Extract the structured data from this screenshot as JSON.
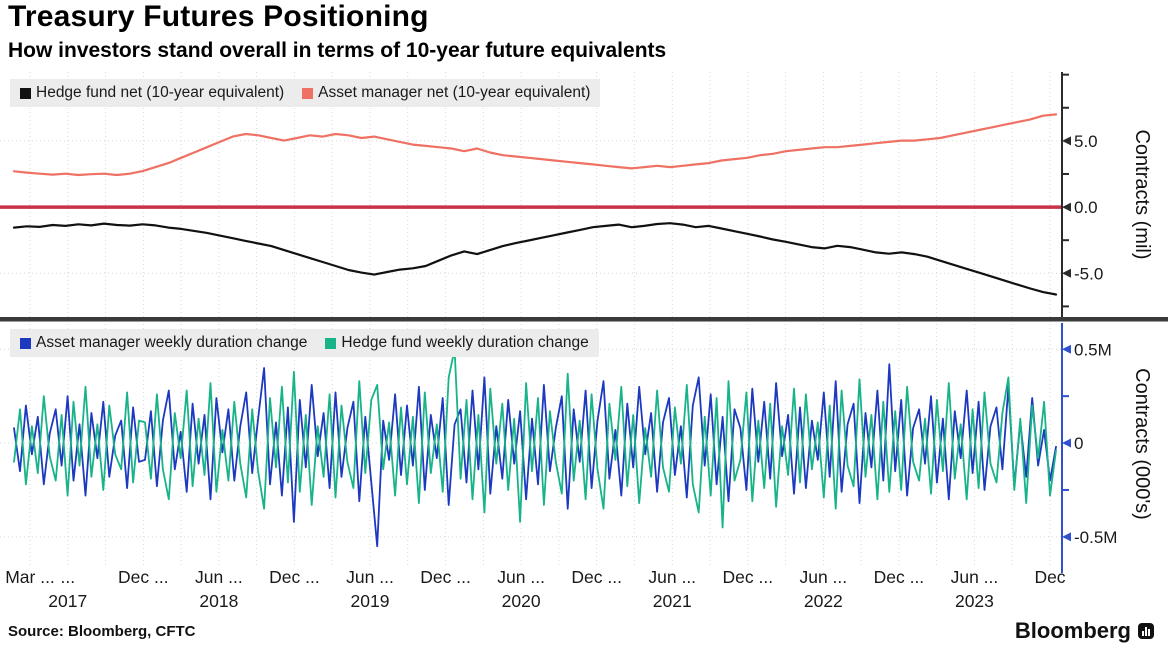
{
  "header": {
    "title": "Treasury Futures Positioning",
    "subtitle": "How investors stand overall in terms of 10-year future equivalents"
  },
  "colors": {
    "hedge_fund_net": "#111111",
    "asset_manager_net": "#ee7163",
    "zero_line": "#cb3148",
    "asset_manager_weekly": "#1c39c0",
    "hedge_fund_weekly": "#18b388",
    "top_axis": "#2b2b2b",
    "bottom_axis": "#3050cf",
    "gridline": "#d6d6d6",
    "separator": "#3a3a3a",
    "legend_bg": "#ececec"
  },
  "chart_data": [
    {
      "type": "line",
      "panel": "top",
      "ylabel": "Contracts (mil)",
      "ylim": [
        -8.3,
        10.2
      ],
      "yticks_major": [
        {
          "v": 5,
          "label": "5.0"
        },
        {
          "v": 0,
          "label": "0.0"
        },
        {
          "v": -5,
          "label": "-5.0"
        }
      ],
      "yticks_minor": [
        10,
        7.5,
        2.5,
        -2.5,
        -7.5
      ],
      "zero_line": true,
      "legend_position": "top-left",
      "grid": true,
      "series": [
        {
          "name": "Hedge fund net (10-year equivalent)",
          "color": "#111111",
          "values": [
            -1.55,
            -1.45,
            -1.5,
            -1.35,
            -1.42,
            -1.3,
            -1.38,
            -1.25,
            -1.35,
            -1.4,
            -1.3,
            -1.38,
            -1.55,
            -1.65,
            -1.8,
            -1.95,
            -2.15,
            -2.35,
            -2.55,
            -2.75,
            -2.95,
            -3.25,
            -3.55,
            -3.85,
            -4.15,
            -4.45,
            -4.75,
            -4.95,
            -5.1,
            -4.9,
            -4.72,
            -4.62,
            -4.45,
            -4.05,
            -3.65,
            -3.35,
            -3.55,
            -3.25,
            -2.95,
            -2.72,
            -2.52,
            -2.32,
            -2.12,
            -1.92,
            -1.72,
            -1.52,
            -1.42,
            -1.32,
            -1.52,
            -1.42,
            -1.28,
            -1.22,
            -1.32,
            -1.52,
            -1.42,
            -1.62,
            -1.82,
            -2.02,
            -2.22,
            -2.45,
            -2.62,
            -2.82,
            -3.02,
            -3.12,
            -2.92,
            -3.02,
            -3.22,
            -3.42,
            -3.52,
            -3.42,
            -3.55,
            -3.75,
            -4.05,
            -4.35,
            -4.65,
            -4.95,
            -5.25,
            -5.55,
            -5.85,
            -6.15,
            -6.42,
            -6.6
          ]
        },
        {
          "name": "Asset manager net (10-year equivalent)",
          "color": "#ee7163",
          "values": [
            2.7,
            2.6,
            2.52,
            2.45,
            2.52,
            2.42,
            2.48,
            2.52,
            2.42,
            2.52,
            2.72,
            3.02,
            3.32,
            3.72,
            4.12,
            4.52,
            4.92,
            5.32,
            5.52,
            5.42,
            5.22,
            5.02,
            5.22,
            5.42,
            5.32,
            5.52,
            5.42,
            5.22,
            5.32,
            5.12,
            4.92,
            4.72,
            4.62,
            4.52,
            4.42,
            4.22,
            4.42,
            4.12,
            3.92,
            3.82,
            3.72,
            3.62,
            3.52,
            3.42,
            3.32,
            3.22,
            3.12,
            3.02,
            2.92,
            3.02,
            3.12,
            3.02,
            3.12,
            3.22,
            3.32,
            3.52,
            3.62,
            3.72,
            3.92,
            4.02,
            4.22,
            4.32,
            4.42,
            4.52,
            4.52,
            4.62,
            4.72,
            4.82,
            4.92,
            5.02,
            5.02,
            5.12,
            5.22,
            5.42,
            5.62,
            5.82,
            6.02,
            6.22,
            6.42,
            6.62,
            6.9,
            7.0
          ]
        }
      ]
    },
    {
      "type": "line",
      "panel": "bottom",
      "ylabel": "Contracts (000's)",
      "ylim": [
        -0.65,
        0.64
      ],
      "yticks_major": [
        {
          "v": 0.5,
          "label": "0.5M"
        },
        {
          "v": 0,
          "label": "0"
        },
        {
          "v": -0.5,
          "label": "-0.5M"
        }
      ],
      "yticks_minor": [
        0.25,
        -0.25
      ],
      "zero_line": false,
      "legend_position": "top-left",
      "grid": true,
      "series": [
        {
          "name": "Asset manager weekly duration change",
          "color": "#1c39c0",
          "values": [
            0.08,
            -0.15,
            0.2,
            -0.06,
            0.14,
            -0.22,
            0.05,
            0.18,
            -0.12,
            0.25,
            -0.2,
            0.1,
            -0.28,
            0.16,
            -0.08,
            0.22,
            -0.18,
            0.04,
            0.12,
            -0.24,
            0.19,
            -0.1,
            -0.09,
            0.17,
            -0.23,
            0.12,
            0.28,
            -0.14,
            0.06,
            -0.26,
            0.21,
            -0.11,
            0.15,
            -0.3,
            0.24,
            -0.05,
            0.18,
            -0.2,
            0.09,
            0.27,
            -0.16,
            0.13,
            0.4,
            -0.22,
            0.11,
            -0.28,
            0.19,
            -0.42,
            0.23,
            -0.13,
            0.31,
            -0.07,
            0.16,
            -0.24,
            0.27,
            -0.18,
            0.08,
            0.22,
            -0.31,
            0.14,
            -0.21,
            -0.55,
            0.12,
            -0.09,
            0.26,
            -0.17,
            0.2,
            -0.12,
            0.3,
            -0.25,
            0.15,
            -0.08,
            0.24,
            -0.33,
            0.1,
            0.18,
            -0.21,
            0.28,
            -0.14,
            0.35,
            -0.27,
            0.09,
            -0.19,
            0.23,
            -0.11,
            0.17,
            -0.3,
            0.13,
            -0.22,
            0.31,
            -0.15,
            0.08,
            0.25,
            -0.35,
            0.18,
            -0.1,
            0.28,
            -0.24,
            0.12,
            0.33,
            -0.19,
            0.07,
            -0.28,
            0.21,
            -0.13,
            0.3,
            -0.06,
            0.16,
            -0.26,
            0.11,
            0.24,
            -0.17,
            0.09,
            -0.29,
            0.2,
            0.35,
            -0.12,
            0.26,
            -0.22,
            0.14,
            -0.31,
            0.18,
            0.08,
            -0.25,
            0.29,
            -0.1,
            0.22,
            -0.19,
            0.32,
            -0.07,
            0.15,
            -0.27,
            0.19,
            -0.24,
            0.12,
            -0.09,
            0.27,
            -0.18,
            0.33,
            -0.26,
            0.1,
            0.21,
            -0.32,
            0.16,
            -0.13,
            0.28,
            -0.2,
            0.42,
            -0.15,
            0.23,
            -0.28,
            0.08,
            0.18,
            -0.11,
            0.25,
            -0.21,
            0.13,
            -0.3,
            0.17,
            -0.08,
            0.28,
            -0.16,
            0.22,
            -0.25,
            0.09,
            0.19,
            -0.14,
            0.3,
            -0.23,
            0.11,
            -0.18,
            0.24,
            -0.12,
            0.07,
            -0.2,
            -0.02
          ]
        },
        {
          "name": "Hedge fund weekly duration change",
          "color": "#18b388",
          "values": [
            -0.1,
            0.18,
            -0.22,
            0.09,
            -0.16,
            0.25,
            -0.07,
            -0.2,
            0.15,
            -0.28,
            0.22,
            -0.12,
            0.3,
            -0.18,
            0.1,
            -0.25,
            0.2,
            -0.06,
            -0.14,
            0.27,
            -0.21,
            0.12,
            0.11,
            -0.19,
            0.26,
            -0.14,
            -0.3,
            0.16,
            -0.08,
            0.28,
            -0.23,
            0.13,
            -0.17,
            0.32,
            -0.26,
            0.07,
            -0.2,
            0.22,
            -0.11,
            -0.29,
            0.18,
            -0.15,
            -0.35,
            0.24,
            -0.13,
            0.3,
            -0.21,
            0.38,
            -0.26,
            0.15,
            -0.33,
            0.09,
            -0.18,
            0.26,
            -0.29,
            0.2,
            -0.1,
            -0.24,
            0.33,
            -0.16,
            0.23,
            0.31,
            -0.14,
            0.11,
            -0.28,
            0.19,
            -0.22,
            0.14,
            -0.32,
            0.27,
            -0.16,
            0.1,
            -0.26,
            0.35,
            0.5,
            -0.19,
            0.23,
            -0.3,
            0.15,
            -0.37,
            0.29,
            -0.11,
            0.21,
            -0.25,
            0.13,
            -0.42,
            0.32,
            -0.15,
            0.24,
            -0.33,
            0.17,
            -0.1,
            -0.27,
            0.37,
            -0.2,
            0.12,
            -0.3,
            0.26,
            -0.14,
            -0.35,
            0.21,
            -0.09,
            0.3,
            -0.23,
            0.15,
            -0.32,
            0.08,
            -0.18,
            0.28,
            -0.13,
            -0.26,
            0.19,
            -0.11,
            0.31,
            -0.22,
            -0.37,
            0.14,
            -0.28,
            0.24,
            -0.45,
            0.33,
            -0.2,
            -0.09,
            0.27,
            -0.31,
            0.12,
            -0.24,
            0.21,
            -0.34,
            0.09,
            -0.17,
            0.29,
            -0.21,
            0.26,
            -0.14,
            0.11,
            -0.29,
            0.2,
            -0.35,
            0.28,
            -0.12,
            -0.23,
            0.34,
            -0.18,
            0.15,
            -0.3,
            0.22,
            -0.26,
            0.17,
            -0.25,
            0.3,
            -0.1,
            -0.2,
            0.13,
            -0.27,
            0.23,
            -0.15,
            0.32,
            -0.19,
            0.1,
            -0.3,
            0.18,
            -0.24,
            0.27,
            -0.11,
            -0.21,
            0.16,
            0.35,
            -0.25,
            0.13,
            -0.32,
            0.2,
            -0.08,
            0.22,
            -0.28,
            -0.04
          ]
        }
      ]
    }
  ],
  "x_axis": {
    "tick_count": 28,
    "month_labels": [
      {
        "label": "Mar ...",
        "tick": 0
      },
      {
        "label": "...",
        "tick": 1
      },
      {
        "label": "Dec ...",
        "tick": 3
      },
      {
        "label": "Jun ...",
        "tick": 5
      },
      {
        "label": "Dec ...",
        "tick": 7
      },
      {
        "label": "Jun ...",
        "tick": 9
      },
      {
        "label": "Dec ...",
        "tick": 11
      },
      {
        "label": "Jun ...",
        "tick": 13
      },
      {
        "label": "Dec ...",
        "tick": 15
      },
      {
        "label": "Jun ...",
        "tick": 17
      },
      {
        "label": "Dec ...",
        "tick": 19
      },
      {
        "label": "Jun ...",
        "tick": 21
      },
      {
        "label": "Dec ...",
        "tick": 23
      },
      {
        "label": "Jun ...",
        "tick": 25
      },
      {
        "label": "Dec",
        "tick": 27
      }
    ],
    "year_labels": [
      {
        "label": "2017",
        "tick": 1
      },
      {
        "label": "2018",
        "tick": 5
      },
      {
        "label": "2019",
        "tick": 9
      },
      {
        "label": "2020",
        "tick": 13
      },
      {
        "label": "2021",
        "tick": 17
      },
      {
        "label": "2022",
        "tick": 21
      },
      {
        "label": "2023",
        "tick": 25
      }
    ]
  },
  "footer": {
    "source": "Source: Bloomberg, CFTC",
    "brand": "Bloomberg"
  }
}
